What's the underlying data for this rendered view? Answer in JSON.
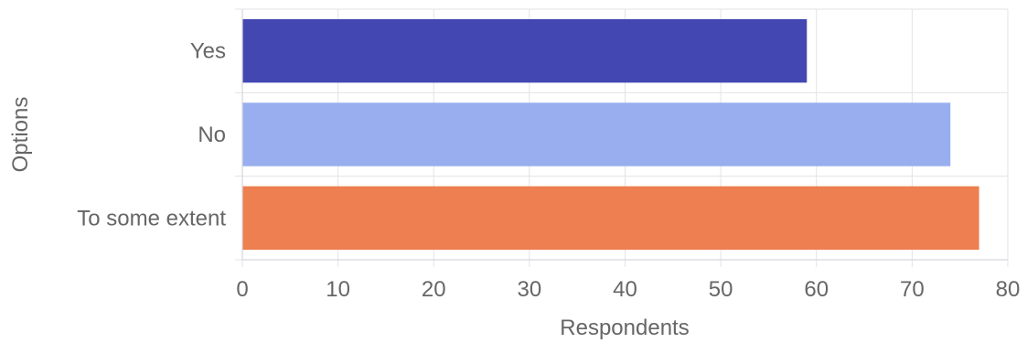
{
  "chart_data": {
    "type": "bar",
    "orientation": "horizontal",
    "categories": [
      "Yes",
      "No",
      "To some extent"
    ],
    "values": [
      59,
      74,
      77
    ],
    "colors": [
      "#4347b2",
      "#98aeee",
      "#ed7f50"
    ],
    "xlabel": "Respondents",
    "ylabel": "Options",
    "xlim": [
      0,
      80
    ],
    "x_ticks": [
      0,
      10,
      20,
      30,
      40,
      50,
      60,
      70,
      80
    ],
    "grid": true,
    "legend": "none"
  }
}
